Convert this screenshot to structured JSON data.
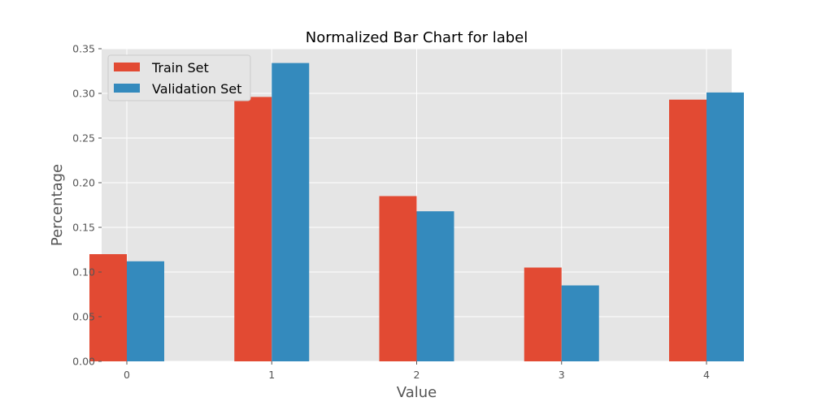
{
  "chart_data": {
    "type": "bar",
    "title": "Normalized Bar Chart for label",
    "xlabel": "Value",
    "ylabel": "Percentage",
    "categories": [
      "0",
      "1",
      "2",
      "3",
      "4"
    ],
    "series": [
      {
        "name": "Train Set",
        "color": "#e24a33",
        "values": [
          0.12,
          0.296,
          0.185,
          0.105,
          0.293
        ]
      },
      {
        "name": "Validation Set",
        "color": "#348abd",
        "values": [
          0.112,
          0.334,
          0.168,
          0.085,
          0.301
        ]
      }
    ],
    "ylim": [
      0,
      0.35
    ],
    "yticks": [
      "0.00",
      "0.05",
      "0.10",
      "0.15",
      "0.20",
      "0.25",
      "0.30",
      "0.35"
    ],
    "grid": true,
    "legend_position": "top-left"
  }
}
